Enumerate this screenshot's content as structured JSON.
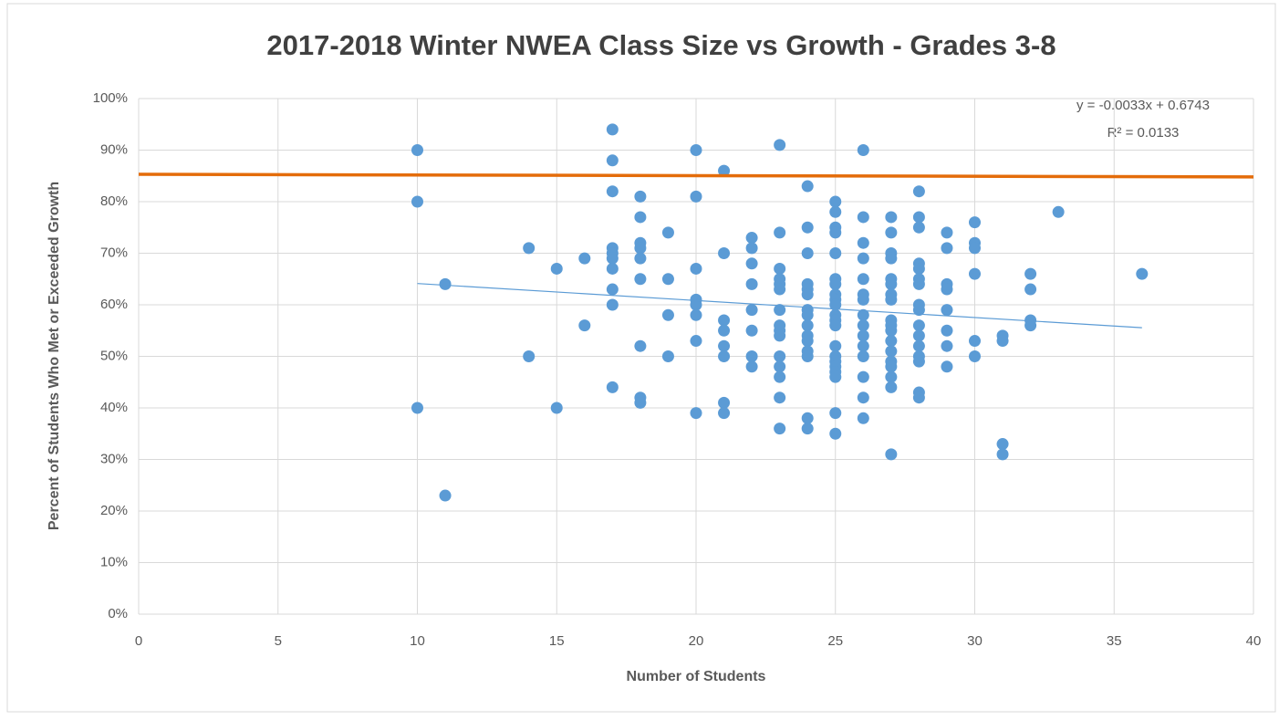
{
  "chart_data": {
    "type": "scatter",
    "title": "2017-2018 Winter NWEA Class Size vs Growth - Grades 3-8",
    "x_label": "Number of Students",
    "y_label": "Percent of Students Who Met or Exceeded Growth",
    "color": "#5b9bd5",
    "x": [
      10,
      10,
      10,
      11,
      11,
      14,
      14,
      15,
      15,
      16,
      16,
      17,
      17,
      17,
      17,
      17,
      17,
      17,
      17,
      17,
      17,
      18,
      18,
      18,
      18,
      18,
      18,
      18,
      18,
      18,
      19,
      19,
      19,
      19,
      20,
      20,
      20,
      20,
      20,
      20,
      20,
      20,
      21,
      21,
      21,
      21,
      21,
      21,
      21,
      21,
      22,
      22,
      22,
      22,
      22,
      22,
      22,
      22,
      23,
      23,
      23,
      23,
      23,
      23,
      23,
      23,
      23,
      23,
      23,
      23,
      23,
      23,
      23,
      24,
      24,
      24,
      24,
      24,
      24,
      24,
      24,
      24,
      24,
      24,
      24,
      24,
      24,
      24,
      25,
      25,
      25,
      25,
      25,
      25,
      25,
      25,
      25,
      25,
      25,
      25,
      25,
      25,
      25,
      25,
      25,
      25,
      25,
      25,
      25,
      26,
      26,
      26,
      26,
      26,
      26,
      26,
      26,
      26,
      26,
      26,
      26,
      26,
      26,
      26,
      27,
      27,
      27,
      27,
      27,
      27,
      27,
      27,
      27,
      27,
      27,
      27,
      27,
      27,
      27,
      27,
      27,
      27,
      28,
      28,
      28,
      28,
      28,
      28,
      28,
      28,
      28,
      28,
      28,
      28,
      28,
      28,
      28,
      28,
      29,
      29,
      29,
      29,
      29,
      29,
      29,
      29,
      30,
      30,
      30,
      30,
      30,
      30,
      31,
      31,
      31,
      31,
      32,
      32,
      32,
      32,
      33,
      36
    ],
    "values": [
      90,
      80,
      40,
      64,
      23,
      71,
      50,
      67,
      40,
      69,
      56,
      94,
      88,
      82,
      71,
      70,
      69,
      67,
      63,
      60,
      44,
      81,
      77,
      72,
      71,
      69,
      65,
      52,
      42,
      41,
      74,
      65,
      58,
      50,
      90,
      81,
      67,
      61,
      60,
      58,
      53,
      39,
      86,
      70,
      57,
      55,
      52,
      50,
      41,
      39,
      73,
      71,
      68,
      64,
      59,
      55,
      50,
      48,
      91,
      74,
      67,
      65,
      64,
      63,
      59,
      56,
      55,
      54,
      50,
      48,
      46,
      42,
      36,
      83,
      75,
      70,
      64,
      63,
      62,
      59,
      58,
      56,
      54,
      53,
      51,
      50,
      38,
      36,
      80,
      78,
      75,
      74,
      70,
      65,
      64,
      62,
      61,
      60,
      58,
      57,
      56,
      52,
      50,
      49,
      48,
      47,
      46,
      39,
      35,
      90,
      77,
      72,
      69,
      65,
      62,
      61,
      58,
      56,
      54,
      52,
      50,
      46,
      42,
      38,
      77,
      74,
      70,
      69,
      65,
      64,
      62,
      61,
      57,
      56,
      55,
      53,
      51,
      49,
      48,
      46,
      44,
      31,
      82,
      77,
      75,
      68,
      67,
      65,
      64,
      60,
      59,
      56,
      54,
      52,
      50,
      49,
      43,
      42,
      74,
      71,
      64,
      63,
      59,
      55,
      52,
      48,
      76,
      72,
      71,
      66,
      53,
      50,
      54,
      53,
      33,
      31,
      66,
      63,
      57,
      56,
      78,
      66
    ],
    "trendline": {
      "x": [
        10,
        36
      ],
      "values": [
        64.13,
        55.55
      ],
      "color": "#5b9bd5",
      "equation": "y = -0.0033x + 0.6743",
      "r_squared": "R² = 0.0133"
    },
    "reference_line": {
      "x": [
        0,
        40
      ],
      "values": [
        85.3,
        84.8
      ],
      "color": "#e46c0a"
    },
    "xlim": [
      0,
      40
    ],
    "xticks": [
      0,
      5,
      10,
      15,
      20,
      25,
      30,
      35,
      40
    ],
    "ylim": [
      0,
      100
    ],
    "yticks": [
      {
        "value": 0,
        "label": "0%"
      },
      {
        "value": 10,
        "label": "10%"
      },
      {
        "value": 20,
        "label": "20%"
      },
      {
        "value": 30,
        "label": "30%"
      },
      {
        "value": 40,
        "label": "40%"
      },
      {
        "value": 50,
        "label": "50%"
      },
      {
        "value": 60,
        "label": "60%"
      },
      {
        "value": 70,
        "label": "70%"
      },
      {
        "value": 80,
        "label": "80%"
      },
      {
        "value": 90,
        "label": "90%"
      },
      {
        "value": 100,
        "label": "100%"
      }
    ],
    "grid": true
  }
}
